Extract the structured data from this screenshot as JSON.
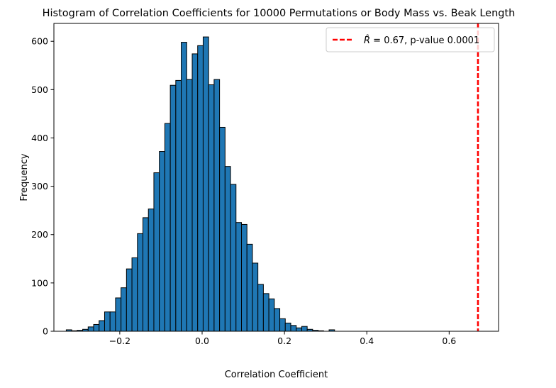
{
  "chart_data": {
    "type": "bar",
    "title": "Histogram of Correlation Coefficients for 10000 Permutations or Body Mass vs. Beak Length",
    "xlabel": "Correlation Coefficient",
    "ylabel": "Frequency",
    "xlim": [
      -0.36,
      0.72
    ],
    "ylim": [
      0,
      637
    ],
    "xticks": [
      -0.2,
      0.0,
      0.2,
      0.4,
      0.6
    ],
    "xtick_labels": [
      "−0.2",
      "0.0",
      "0.2",
      "0.4",
      "0.6"
    ],
    "yticks": [
      0,
      100,
      200,
      300,
      400,
      500,
      600
    ],
    "ytick_labels": [
      "0",
      "100",
      "200",
      "300",
      "400",
      "500",
      "600"
    ],
    "grid": false,
    "legend_position": "top-right",
    "bar_color": "#1f77b4",
    "edge_color": "#000000",
    "bins": {
      "start": -0.33,
      "width": 0.0133,
      "counts": [
        3,
        1,
        2,
        4,
        9,
        14,
        22,
        40,
        40,
        69,
        90,
        129,
        152,
        202,
        235,
        253,
        328,
        372,
        430,
        509,
        519,
        598,
        521,
        574,
        591,
        609,
        510,
        521,
        422,
        341,
        304,
        225,
        221,
        180,
        141,
        97,
        78,
        67,
        47,
        26,
        17,
        12,
        7,
        10,
        4,
        2,
        1,
        0,
        3
      ]
    },
    "observed_line": {
      "x": 0.67,
      "color": "#ff0000",
      "label_symbol": "R̂",
      "label_text": " = 0.67, p-value 0.0001"
    }
  }
}
